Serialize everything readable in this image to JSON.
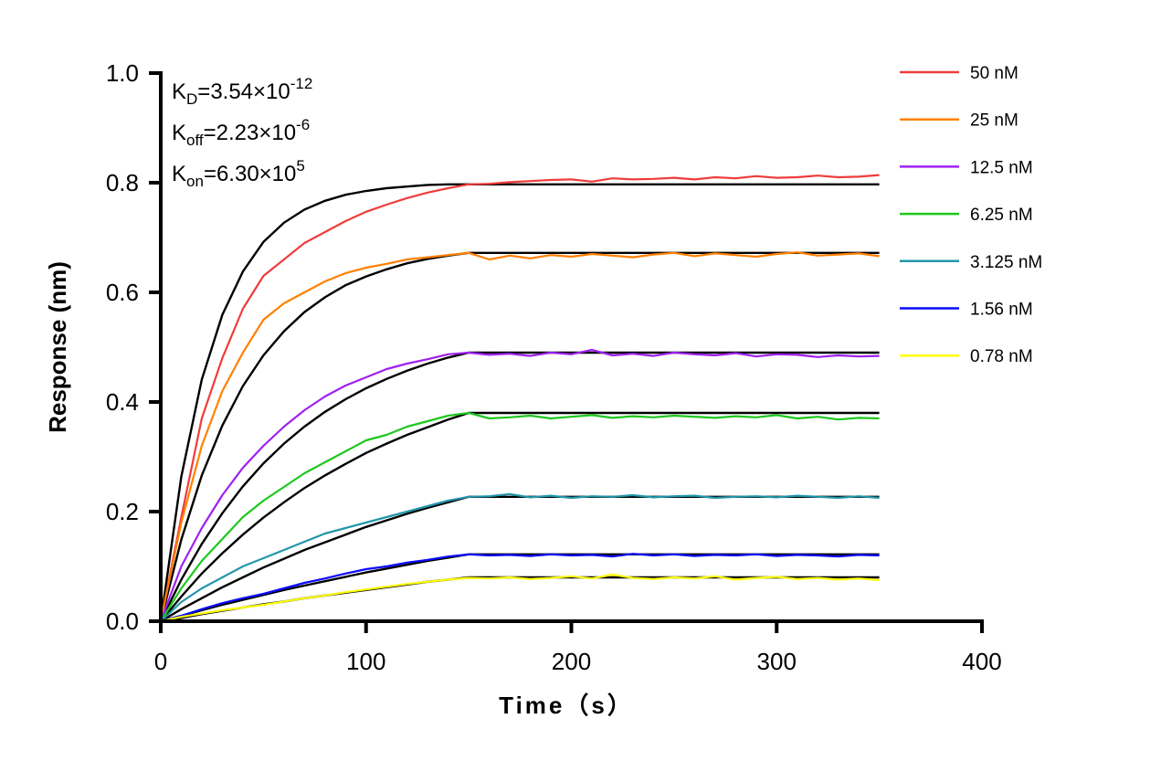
{
  "chart_data": {
    "type": "line",
    "title": "",
    "xlabel": "Time（s）",
    "ylabel": "Response (nm)",
    "xlim": [
      0,
      400
    ],
    "ylim": [
      0,
      1.0
    ],
    "x_ticks": [
      "0",
      "100",
      "200",
      "300",
      "400"
    ],
    "y_ticks": [
      "0.0",
      "0.2",
      "0.4",
      "0.6",
      "0.8",
      "1.0"
    ],
    "grid": false,
    "legend_position": "right",
    "annotations": [
      {
        "base": "K",
        "sub": "D",
        "text": "=3.54×10",
        "sup": "-12"
      },
      {
        "base": "K",
        "sub": "off",
        "text": "=2.23×10",
        "sup": "-6"
      },
      {
        "base": "K",
        "sub": "on",
        "text": "=6.30×10",
        "sup": "5"
      }
    ],
    "fit_color": "#000000",
    "x": [
      0,
      10,
      20,
      30,
      40,
      50,
      60,
      70,
      80,
      90,
      100,
      110,
      120,
      130,
      140,
      150,
      160,
      170,
      180,
      190,
      200,
      210,
      220,
      230,
      240,
      250,
      260,
      270,
      280,
      290,
      300,
      310,
      320,
      330,
      340,
      350
    ],
    "fit_x": [
      0,
      10,
      20,
      30,
      40,
      50,
      60,
      70,
      80,
      90,
      100,
      110,
      120,
      130,
      140,
      150,
      350
    ],
    "series": [
      {
        "name": "50 nM",
        "color": "#f03c3c",
        "values": [
          0,
          0.19,
          0.37,
          0.48,
          0.57,
          0.63,
          0.66,
          0.69,
          0.71,
          0.73,
          0.747,
          0.76,
          0.772,
          0.782,
          0.79,
          0.797,
          0.798,
          0.801,
          0.803,
          0.805,
          0.806,
          0.802,
          0.808,
          0.806,
          0.807,
          0.809,
          0.806,
          0.81,
          0.808,
          0.812,
          0.809,
          0.81,
          0.813,
          0.81,
          0.811,
          0.814
        ],
        "fit": [
          0,
          0.264,
          0.441,
          0.559,
          0.638,
          0.692,
          0.727,
          0.751,
          0.767,
          0.778,
          0.785,
          0.79,
          0.793,
          0.796,
          0.797,
          0.797,
          0.797
        ]
      },
      {
        "name": "25 nM",
        "color": "#ff8000",
        "values": [
          0,
          0.18,
          0.32,
          0.42,
          0.49,
          0.55,
          0.58,
          0.6,
          0.62,
          0.635,
          0.645,
          0.652,
          0.66,
          0.664,
          0.668,
          0.672,
          0.66,
          0.667,
          0.662,
          0.668,
          0.665,
          0.67,
          0.667,
          0.664,
          0.669,
          0.672,
          0.666,
          0.671,
          0.668,
          0.665,
          0.67,
          0.673,
          0.667,
          0.669,
          0.671,
          0.666
        ],
        "fit": [
          0,
          0.149,
          0.266,
          0.357,
          0.429,
          0.485,
          0.529,
          0.564,
          0.591,
          0.613,
          0.629,
          0.642,
          0.653,
          0.661,
          0.667,
          0.672,
          0.672
        ]
      },
      {
        "name": "12.5 nM",
        "color": "#a020f0",
        "values": [
          0,
          0.1,
          0.17,
          0.23,
          0.28,
          0.32,
          0.355,
          0.385,
          0.41,
          0.43,
          0.445,
          0.46,
          0.47,
          0.478,
          0.487,
          0.49,
          0.486,
          0.488,
          0.484,
          0.49,
          0.487,
          0.495,
          0.485,
          0.488,
          0.484,
          0.49,
          0.487,
          0.485,
          0.489,
          0.483,
          0.487,
          0.486,
          0.482,
          0.485,
          0.483,
          0.484
        ],
        "fit": [
          0,
          0.076,
          0.141,
          0.197,
          0.246,
          0.288,
          0.324,
          0.355,
          0.382,
          0.405,
          0.425,
          0.442,
          0.457,
          0.47,
          0.481,
          0.49,
          0.49
        ]
      },
      {
        "name": "6.25 nM",
        "color": "#1ec81e",
        "values": [
          0,
          0.06,
          0.11,
          0.15,
          0.19,
          0.22,
          0.245,
          0.27,
          0.29,
          0.31,
          0.33,
          0.34,
          0.355,
          0.365,
          0.375,
          0.38,
          0.37,
          0.372,
          0.375,
          0.37,
          0.373,
          0.376,
          0.371,
          0.374,
          0.372,
          0.375,
          0.373,
          0.371,
          0.374,
          0.372,
          0.376,
          0.37,
          0.373,
          0.368,
          0.371,
          0.37
        ],
        "fit": [
          0,
          0.045,
          0.087,
          0.124,
          0.158,
          0.189,
          0.217,
          0.243,
          0.266,
          0.287,
          0.307,
          0.324,
          0.34,
          0.354,
          0.368,
          0.38,
          0.38
        ]
      },
      {
        "name": "3.125 nM",
        "color": "#2396aa",
        "values": [
          0,
          0.035,
          0.06,
          0.08,
          0.1,
          0.115,
          0.13,
          0.145,
          0.16,
          0.17,
          0.18,
          0.19,
          0.2,
          0.21,
          0.22,
          0.227,
          0.228,
          0.232,
          0.226,
          0.229,
          0.225,
          0.228,
          0.227,
          0.23,
          0.226,
          0.228,
          0.229,
          0.225,
          0.227,
          0.228,
          0.226,
          0.229,
          0.227,
          0.225,
          0.228,
          0.225
        ],
        "fit": [
          0,
          0.022,
          0.042,
          0.062,
          0.08,
          0.098,
          0.114,
          0.13,
          0.144,
          0.158,
          0.172,
          0.184,
          0.196,
          0.207,
          0.217,
          0.227,
          0.227
        ]
      },
      {
        "name": "1.56 nM",
        "color": "#0a0aff",
        "values": [
          0,
          0.01,
          0.022,
          0.033,
          0.042,
          0.05,
          0.06,
          0.07,
          0.078,
          0.087,
          0.095,
          0.1,
          0.107,
          0.112,
          0.118,
          0.122,
          0.12,
          0.121,
          0.119,
          0.122,
          0.12,
          0.121,
          0.118,
          0.123,
          0.12,
          0.122,
          0.119,
          0.121,
          0.12,
          0.122,
          0.119,
          0.121,
          0.12,
          0.118,
          0.121,
          0.12
        ],
        "fit": [
          0,
          0.01,
          0.02,
          0.03,
          0.039,
          0.048,
          0.057,
          0.065,
          0.073,
          0.081,
          0.089,
          0.096,
          0.103,
          0.11,
          0.116,
          0.122,
          0.122
        ]
      },
      {
        "name": "0.78 nM",
        "color": "#ffff00",
        "values": [
          0,
          0.008,
          0.014,
          0.02,
          0.025,
          0.03,
          0.036,
          0.042,
          0.047,
          0.053,
          0.058,
          0.063,
          0.068,
          0.072,
          0.076,
          0.079,
          0.078,
          0.08,
          0.077,
          0.079,
          0.082,
          0.078,
          0.085,
          0.079,
          0.077,
          0.08,
          0.078,
          0.082,
          0.076,
          0.079,
          0.081,
          0.077,
          0.079,
          0.076,
          0.078,
          0.075
        ],
        "fit": [
          0,
          0.006,
          0.013,
          0.019,
          0.025,
          0.031,
          0.036,
          0.042,
          0.047,
          0.052,
          0.057,
          0.062,
          0.067,
          0.072,
          0.076,
          0.08,
          0.08
        ]
      }
    ]
  }
}
